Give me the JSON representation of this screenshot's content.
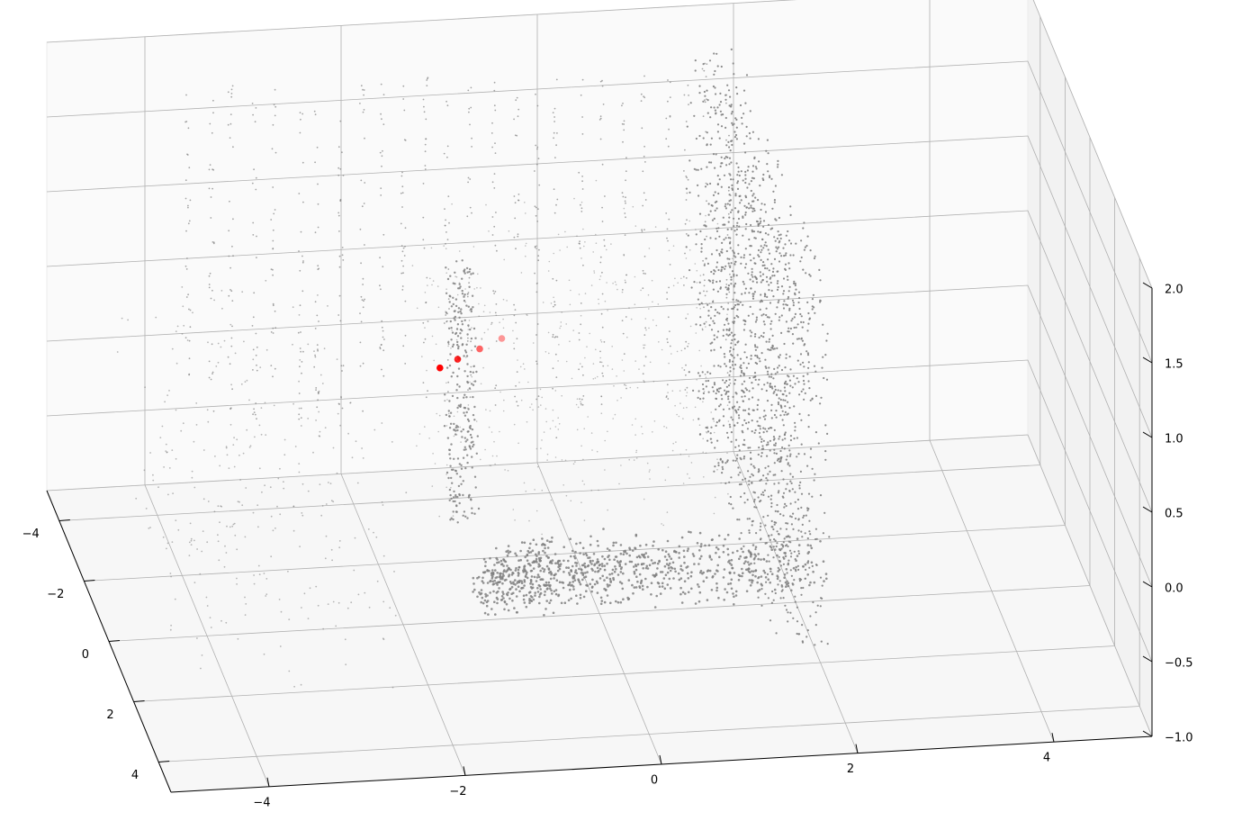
{
  "chart_data": {
    "type": "scatter",
    "projection": "3d",
    "title": "",
    "xlabel": "",
    "ylabel": "",
    "zlabel": "",
    "grid": true,
    "legend": "none",
    "xlim": [
      -5,
      5
    ],
    "ylim": [
      -5,
      5
    ],
    "zlim": [
      -1,
      2
    ],
    "x_ticks": [
      "−4",
      "−2",
      "0",
      "2",
      "4"
    ],
    "y_ticks": [
      "−4",
      "−2",
      "0",
      "2",
      "4"
    ],
    "z_ticks": [
      "−1.0",
      "−0.5",
      "0.0",
      "0.5",
      "1.0",
      "1.5",
      "2.0"
    ],
    "x_tick_values": [
      -4,
      -2,
      0,
      2,
      4
    ],
    "y_tick_values": [
      -4,
      -2,
      0,
      2,
      4
    ],
    "z_tick_values": [
      -1,
      -0.5,
      0,
      0.5,
      1,
      1.5,
      2
    ],
    "series": [
      {
        "kind": "point-cloud",
        "color": "#808080",
        "marker_size": "small",
        "approx_point_count": 6000,
        "structures": [
          {
            "description": "ground fan",
            "x_range": [
              -1.5,
              3.5
            ],
            "y_range": [
              -1.0,
              1.0
            ],
            "z_range": [
              -0.8,
              -0.4
            ]
          },
          {
            "description": "wall slab",
            "x_range": [
              1.5,
              2.0
            ],
            "y_range": [
              -5.0,
              3.0
            ],
            "z_range": [
              -0.8,
              1.8
            ]
          },
          {
            "description": "left column",
            "x_range": [
              -1.5,
              -1.2
            ],
            "y_range": [
              -1.5,
              -0.5
            ],
            "z_range": [
              -0.5,
              1.2
            ]
          }
        ]
      },
      {
        "kind": "trajectory",
        "color": "#ff0000",
        "points": [
          {
            "x": -1.55,
            "y": -0.6,
            "z": 0.58
          },
          {
            "x": -1.35,
            "y": -0.75,
            "z": 0.6
          },
          {
            "x": -1.1,
            "y": -0.95,
            "z": 0.62
          },
          {
            "x": -0.85,
            "y": -1.15,
            "z": 0.64
          }
        ],
        "alphas": [
          1.0,
          0.85,
          0.6,
          0.4
        ]
      }
    ]
  }
}
